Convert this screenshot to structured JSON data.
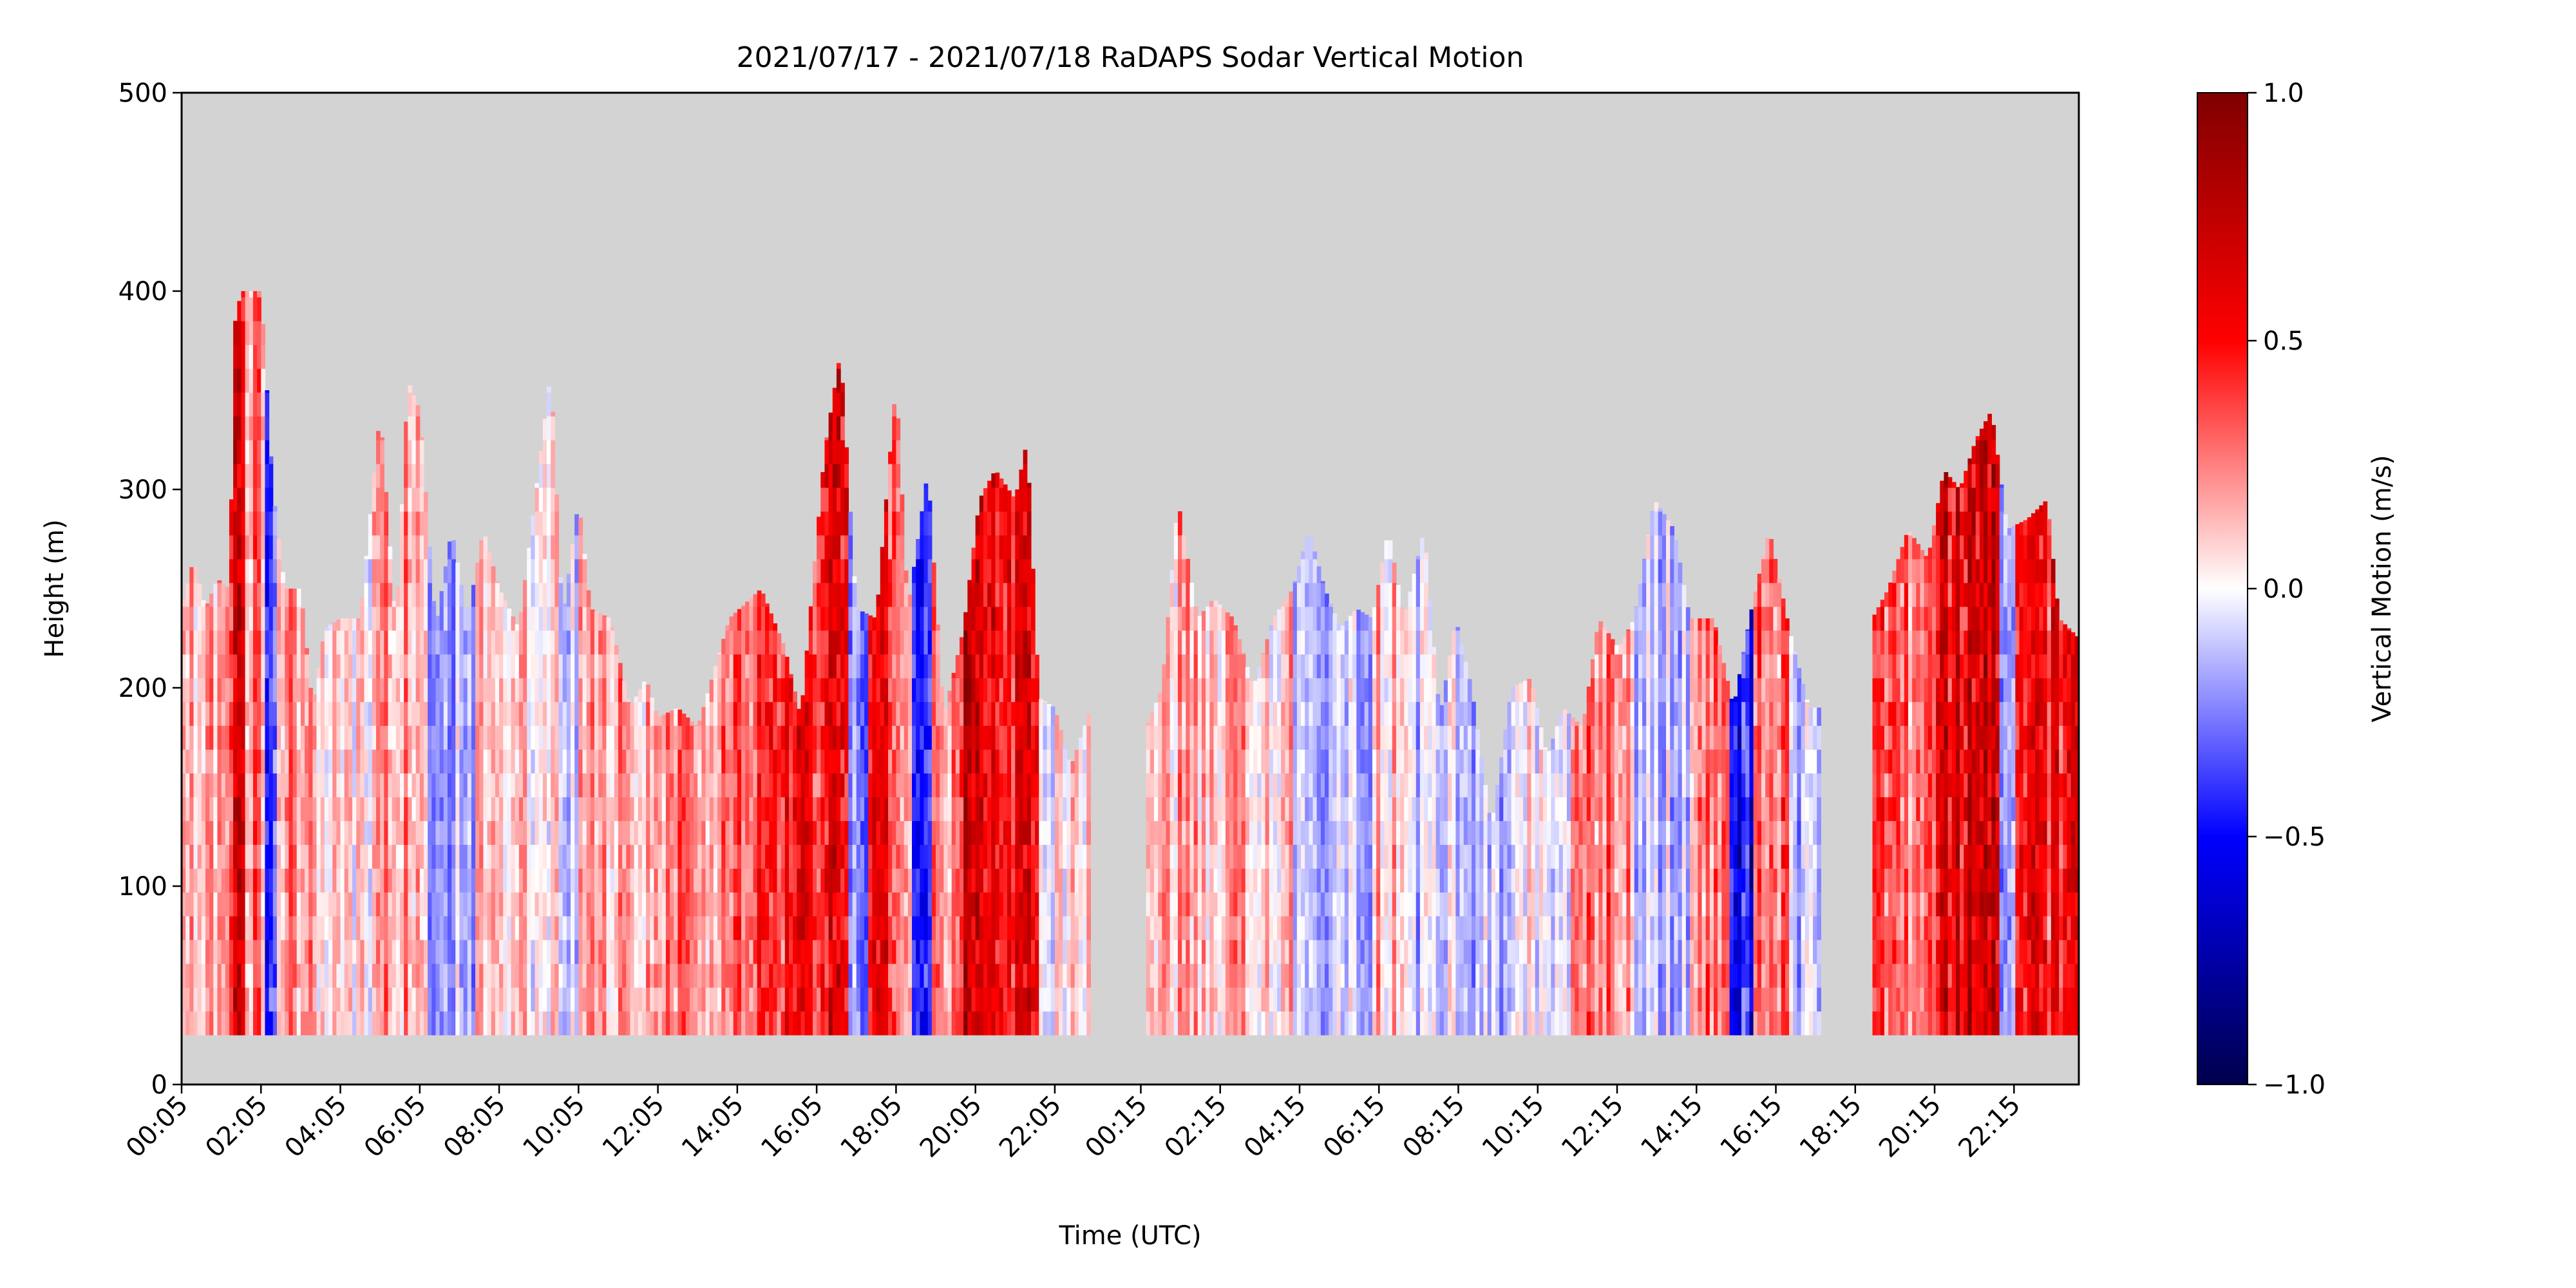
{
  "chart_data": {
    "type": "heatmap",
    "title": "2021/07/17 - 2021/07/18 RaDAPS Sodar Vertical Motion",
    "xlabel": "Time (UTC)",
    "ylabel": "Height (m)",
    "ylim": [
      0,
      500
    ],
    "yticks": [
      0,
      100,
      200,
      300,
      400,
      500
    ],
    "xticks": [
      "00:05",
      "02:05",
      "04:05",
      "06:05",
      "08:05",
      "10:05",
      "12:05",
      "14:05",
      "16:05",
      "18:05",
      "20:05",
      "22:05",
      "00:15",
      "02:15",
      "04:15",
      "06:15",
      "08:15",
      "10:15",
      "12:15",
      "14:15",
      "16:15",
      "18:15",
      "20:15",
      "22:15"
    ],
    "xlim_hours_since_start": [
      0,
      47.8
    ],
    "background_color": "#d3d3d3",
    "colormap": "seismic",
    "colorbar": {
      "label": "Vertical Motion (m/s)",
      "range": [
        -1.0,
        1.0
      ],
      "ticks": [
        "−1.0",
        "−0.5",
        "0.0",
        "0.5",
        "1.0"
      ],
      "tick_values": [
        -1.0,
        -0.5,
        0.0,
        0.5,
        1.0
      ]
    },
    "data_min_height": 25,
    "data_gaps_hours_since_start": [
      [
        22.9,
        24.3
      ],
      [
        41.3,
        42.6
      ]
    ],
    "max_height_profile": [
      [
        0.0,
        240
      ],
      [
        0.3,
        265
      ],
      [
        0.6,
        240
      ],
      [
        0.9,
        255
      ],
      [
        1.2,
        250
      ],
      [
        1.35,
        385
      ],
      [
        1.5,
        400
      ],
      [
        2.0,
        400
      ],
      [
        2.3,
        300
      ],
      [
        2.6,
        250
      ],
      [
        3.0,
        250
      ],
      [
        3.3,
        190
      ],
      [
        3.6,
        230
      ],
      [
        4.0,
        235
      ],
      [
        4.5,
        235
      ],
      [
        5.0,
        340
      ],
      [
        5.4,
        230
      ],
      [
        5.7,
        355
      ],
      [
        6.0,
        340
      ],
      [
        6.4,
        230
      ],
      [
        6.8,
        280
      ],
      [
        7.2,
        235
      ],
      [
        7.6,
        280
      ],
      [
        8.0,
        250
      ],
      [
        8.5,
        230
      ],
      [
        9.3,
        360
      ],
      [
        9.6,
        235
      ],
      [
        10.0,
        295
      ],
      [
        10.3,
        240
      ],
      [
        10.8,
        235
      ],
      [
        11.3,
        190
      ],
      [
        11.7,
        205
      ],
      [
        12.0,
        185
      ],
      [
        12.5,
        190
      ],
      [
        13.0,
        180
      ],
      [
        13.8,
        235
      ],
      [
        14.6,
        250
      ],
      [
        15.2,
        220
      ],
      [
        15.6,
        185
      ],
      [
        16.2,
        320
      ],
      [
        16.6,
        370
      ],
      [
        17.0,
        240
      ],
      [
        17.5,
        235
      ],
      [
        18.0,
        355
      ],
      [
        18.3,
        240
      ],
      [
        18.8,
        310
      ],
      [
        19.2,
        185
      ],
      [
        19.7,
        230
      ],
      [
        20.1,
        295
      ],
      [
        20.5,
        310
      ],
      [
        21.0,
        295
      ],
      [
        21.3,
        325
      ],
      [
        21.6,
        195
      ],
      [
        22.0,
        190
      ],
      [
        22.4,
        160
      ],
      [
        22.9,
        190
      ],
      [
        24.3,
        180
      ],
      [
        24.7,
        200
      ],
      [
        25.1,
        295
      ],
      [
        25.6,
        235
      ],
      [
        26.0,
        245
      ],
      [
        26.5,
        235
      ],
      [
        27.0,
        200
      ],
      [
        27.5,
        235
      ],
      [
        28.0,
        250
      ],
      [
        28.4,
        280
      ],
      [
        28.8,
        250
      ],
      [
        29.2,
        230
      ],
      [
        29.6,
        240
      ],
      [
        30.0,
        235
      ],
      [
        30.4,
        280
      ],
      [
        30.8,
        235
      ],
      [
        31.3,
        280
      ],
      [
        31.7,
        185
      ],
      [
        32.1,
        235
      ],
      [
        32.5,
        200
      ],
      [
        33.0,
        130
      ],
      [
        33.5,
        200
      ],
      [
        34.0,
        205
      ],
      [
        34.4,
        165
      ],
      [
        34.8,
        190
      ],
      [
        35.3,
        180
      ],
      [
        35.7,
        235
      ],
      [
        36.2,
        220
      ],
      [
        36.6,
        235
      ],
      [
        37.1,
        295
      ],
      [
        37.6,
        280
      ],
      [
        38.0,
        235
      ],
      [
        38.6,
        235
      ],
      [
        39.1,
        190
      ],
      [
        39.5,
        235
      ],
      [
        40.0,
        280
      ],
      [
        40.5,
        230
      ],
      [
        41.0,
        190
      ],
      [
        41.3,
        190
      ],
      [
        42.6,
        235
      ],
      [
        43.0,
        250
      ],
      [
        43.5,
        280
      ],
      [
        44.0,
        265
      ],
      [
        44.4,
        310
      ],
      [
        44.8,
        300
      ],
      [
        45.2,
        325
      ],
      [
        45.6,
        340
      ],
      [
        46.0,
        280
      ],
      [
        46.5,
        285
      ],
      [
        47.0,
        295
      ],
      [
        47.3,
        235
      ],
      [
        47.8,
        225
      ]
    ],
    "vertical_motion_bands": [
      {
        "t": [
          0.0,
          1.2
        ],
        "w": 0.2
      },
      {
        "t": [
          1.2,
          1.6
        ],
        "w": 0.6
      },
      {
        "t": [
          1.35,
          1.55
        ],
        "w": 0.85
      },
      {
        "t": [
          1.6,
          2.1
        ],
        "w": 0.3
      },
      {
        "t": [
          2.1,
          2.4
        ],
        "w": -0.5
      },
      {
        "t": [
          2.4,
          3.3
        ],
        "w": 0.25
      },
      {
        "t": [
          3.3,
          4.8
        ],
        "w": 0.1
      },
      {
        "t": [
          4.8,
          6.2
        ],
        "w": 0.25
      },
      {
        "t": [
          6.2,
          7.4
        ],
        "w": -0.15
      },
      {
        "t": [
          7.4,
          9.5
        ],
        "w": 0.12
      },
      {
        "t": [
          9.5,
          10.0
        ],
        "w": -0.1
      },
      {
        "t": [
          10.0,
          12.0
        ],
        "w": 0.2
      },
      {
        "t": [
          12.0,
          13.5
        ],
        "w": 0.25
      },
      {
        "t": [
          13.5,
          14.6
        ],
        "w": 0.4
      },
      {
        "t": [
          14.6,
          15.2
        ],
        "w": 0.6
      },
      {
        "t": [
          15.2,
          15.7
        ],
        "w": 0.7
      },
      {
        "t": [
          15.7,
          16.2
        ],
        "w": 0.5
      },
      {
        "t": [
          16.2,
          16.8
        ],
        "w": 0.8
      },
      {
        "t": [
          16.8,
          17.3
        ],
        "w": -0.25
      },
      {
        "t": [
          17.3,
          18.0
        ],
        "w": 0.55
      },
      {
        "t": [
          18.0,
          18.4
        ],
        "w": 0.35
      },
      {
        "t": [
          18.4,
          18.9
        ],
        "w": -0.45
      },
      {
        "t": [
          18.9,
          19.7
        ],
        "w": 0.3
      },
      {
        "t": [
          19.7,
          20.2
        ],
        "w": 0.85
      },
      {
        "t": [
          20.2,
          21.0
        ],
        "w": 0.6
      },
      {
        "t": [
          21.0,
          21.6
        ],
        "w": 0.7
      },
      {
        "t": [
          21.6,
          22.9
        ],
        "w": 0.05
      },
      {
        "t": [
          24.3,
          26.0
        ],
        "w": 0.2
      },
      {
        "t": [
          26.0,
          28.0
        ],
        "w": 0.15
      },
      {
        "t": [
          28.0,
          30.0
        ],
        "w": -0.1
      },
      {
        "t": [
          30.0,
          31.0
        ],
        "w": 0.15
      },
      {
        "t": [
          31.0,
          33.5
        ],
        "w": -0.12
      },
      {
        "t": [
          33.5,
          35.0
        ],
        "w": 0.05
      },
      {
        "t": [
          35.0,
          36.5
        ],
        "w": 0.35
      },
      {
        "t": [
          36.5,
          38.0
        ],
        "w": -0.1
      },
      {
        "t": [
          38.0,
          39.0
        ],
        "w": 0.3
      },
      {
        "t": [
          39.0,
          39.6
        ],
        "w": -0.6
      },
      {
        "t": [
          39.6,
          40.5
        ],
        "w": 0.4
      },
      {
        "t": [
          40.5,
          41.3
        ],
        "w": -0.2
      },
      {
        "t": [
          42.6,
          43.5
        ],
        "w": 0.5
      },
      {
        "t": [
          43.5,
          44.2
        ],
        "w": 0.3
      },
      {
        "t": [
          44.2,
          45.0
        ],
        "w": 0.7
      },
      {
        "t": [
          45.0,
          45.8
        ],
        "w": 0.85
      },
      {
        "t": [
          45.8,
          46.2
        ],
        "w": -0.35
      },
      {
        "t": [
          46.2,
          47.8
        ],
        "w": 0.6
      }
    ]
  }
}
